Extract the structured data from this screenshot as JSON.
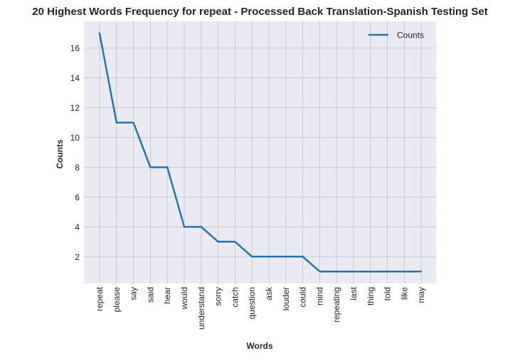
{
  "chart_data": {
    "type": "line",
    "title": "20 Highest Words Frequency for repeat - Processed Back Translation-Spanish Testing Set",
    "xlabel": "Words",
    "ylabel": "Counts",
    "categories": [
      "repeat",
      "please",
      "say",
      "said",
      "hear",
      "would",
      "understand",
      "sorry",
      "catch",
      "question",
      "ask",
      "louder",
      "could",
      "mind",
      "repeating",
      "last",
      "thing",
      "told",
      "like",
      "may"
    ],
    "series": [
      {
        "name": "Counts",
        "color": "#1f77b4",
        "values": [
          17,
          11,
          11,
          8,
          8,
          4,
          4,
          3,
          3,
          2,
          2,
          2,
          2,
          1,
          1,
          1,
          1,
          1,
          1,
          1
        ]
      }
    ],
    "yticks": [
      2,
      4,
      6,
      8,
      10,
      12,
      14,
      16
    ],
    "ylim": [
      0.2,
      17.8
    ],
    "grid": true,
    "legend_position": "top-right",
    "background_color": "#eaeaf2",
    "grid_color": "#c0c0c4"
  }
}
